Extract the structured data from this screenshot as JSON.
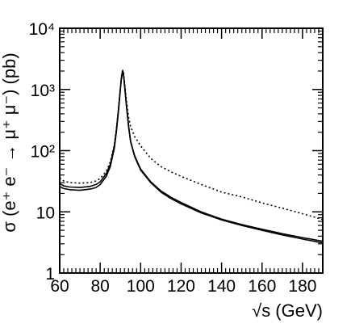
{
  "chart_data": {
    "type": "line",
    "xlabel": "√s (GeV)",
    "ylabel": "σ (e⁺ e⁻ → μ⁺ μ⁻) (pb)",
    "xlim": [
      60,
      190
    ],
    "ylim": [
      1,
      10000
    ],
    "y_scale": "log",
    "grid": false,
    "x_ticks": [
      60,
      80,
      100,
      120,
      140,
      160,
      180
    ],
    "x_tick_labels": [
      "60",
      "80",
      "100",
      "120",
      "140",
      "160",
      "180"
    ],
    "y_ticks": [
      1,
      10,
      100,
      1000,
      10000
    ],
    "y_tick_labels": [
      "1",
      "10",
      "10²",
      "10³",
      "10⁴"
    ],
    "series": [
      {
        "style": "solid",
        "x": [
          60,
          62,
          65,
          70,
          75,
          78,
          80,
          83,
          85,
          87,
          88,
          89,
          90,
          90.5,
          91,
          91.2,
          91.5,
          92,
          93,
          94,
          95,
          97,
          100,
          105,
          110,
          115,
          120,
          130,
          140,
          150,
          160,
          170,
          180,
          190
        ],
        "y": [
          26,
          24,
          23,
          22.5,
          23.5,
          25,
          28,
          38,
          55,
          110,
          200,
          420,
          1000,
          1500,
          1850,
          1900,
          1750,
          1200,
          520,
          250,
          140,
          80,
          48,
          30,
          21,
          16.5,
          13.5,
          9.6,
          7.4,
          6.0,
          5.0,
          4.2,
          3.6,
          3.1
        ]
      },
      {
        "style": "solid",
        "x": [
          60,
          62,
          65,
          70,
          75,
          78,
          80,
          83,
          85,
          87,
          88,
          89,
          90,
          90.5,
          91,
          91.2,
          91.5,
          92,
          93,
          94,
          95,
          97,
          100,
          105,
          110,
          115,
          120,
          130,
          140,
          150,
          160,
          170,
          180,
          190
        ],
        "y": [
          29,
          26.5,
          25.5,
          25,
          26,
          28,
          31,
          42,
          60,
          118,
          215,
          450,
          1050,
          1580,
          1950,
          2000,
          1850,
          1260,
          540,
          260,
          145,
          83,
          50,
          31,
          22,
          17.3,
          14.2,
          10.0,
          7.6,
          6.2,
          5.2,
          4.4,
          3.8,
          3.3
        ]
      },
      {
        "style": "dotted",
        "x": [
          60,
          62,
          65,
          70,
          75,
          78,
          80,
          83,
          85,
          87,
          88,
          89,
          90,
          90.5,
          91,
          91.2,
          91.5,
          92,
          93,
          94,
          95,
          97,
          100,
          105,
          110,
          115,
          120,
          130,
          140,
          150,
          160,
          170,
          180,
          190
        ],
        "y": [
          36,
          32,
          30,
          29.5,
          30,
          32,
          35,
          46,
          66,
          125,
          225,
          470,
          1080,
          1620,
          1980,
          2050,
          1900,
          1350,
          640,
          360,
          250,
          170,
          120,
          75,
          55,
          45,
          38,
          28,
          21,
          17.5,
          14,
          11.5,
          9.3,
          7.5
        ]
      }
    ]
  }
}
